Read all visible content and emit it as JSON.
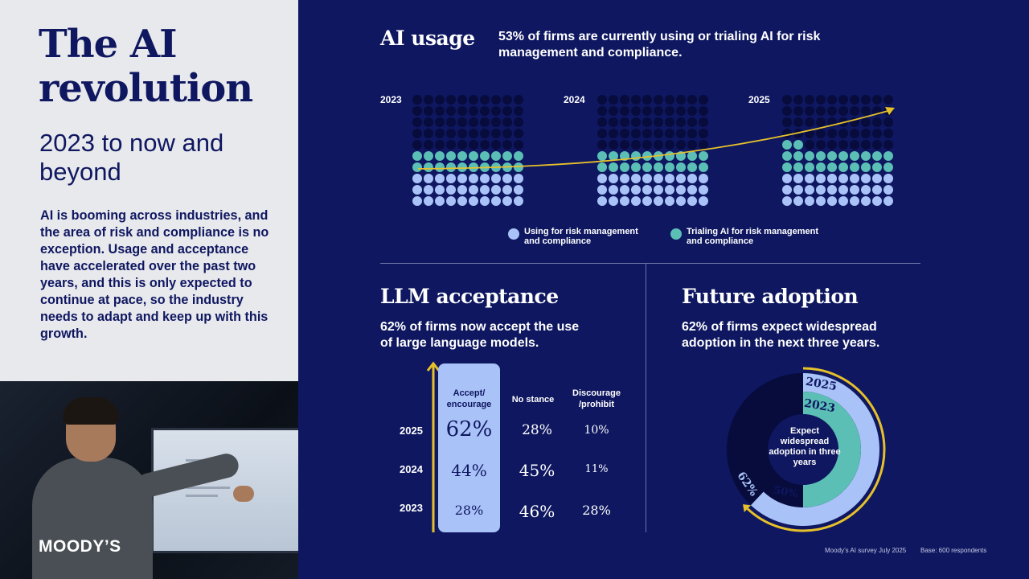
{
  "left": {
    "title": "The AI revolution",
    "subtitle": "2023 to now and beyond",
    "intro": "AI is booming across industries, and the area of risk and compliance is no exception. Usage and acceptance have accelerated over the past two years, and this is only expected to continue at pace, so the industry needs to adapt and keep up with this growth.",
    "logo": "MOODY’S"
  },
  "ai_usage": {
    "title": "AI usage",
    "text": "53% of firms are currently using or trialing AI for risk management and compliance.",
    "years": [
      "2023",
      "2024",
      "2025"
    ],
    "legend": {
      "using": "Using for risk management and compliance",
      "trialing": "Trialing AI for risk management and compliance"
    },
    "colors": {
      "using": "#a9c2f7",
      "trialing": "#5bbfb5",
      "empty": "#070c3c",
      "arrow": "#e6c02b"
    }
  },
  "llm": {
    "title": "LLM acceptance",
    "text": "62% of firms now accept the use of large language models.",
    "headers": {
      "accept": "Accept/ encourage",
      "no_stance": "No stance",
      "discourage": "Discourage /prohibit"
    },
    "rows": [
      {
        "year": "2025",
        "accept": "62%",
        "no_stance": "28%",
        "discourage": "10%"
      },
      {
        "year": "2024",
        "accept": "44%",
        "no_stance": "45%",
        "discourage": "11%"
      },
      {
        "year": "2023",
        "accept": "28%",
        "no_stance": "46%",
        "discourage": "28%"
      }
    ]
  },
  "future": {
    "title": "Future adoption",
    "text": "62% of firms expect widespread adoption in the next three years.",
    "center": "Expect widespread adoption in three years",
    "outer_year": "2025",
    "inner_year": "2023",
    "outer_value": "62%",
    "inner_value": "50%"
  },
  "footer": {
    "source": "Moody’s AI survey July 2025",
    "base": "Base: 600 respondents"
  }
}
